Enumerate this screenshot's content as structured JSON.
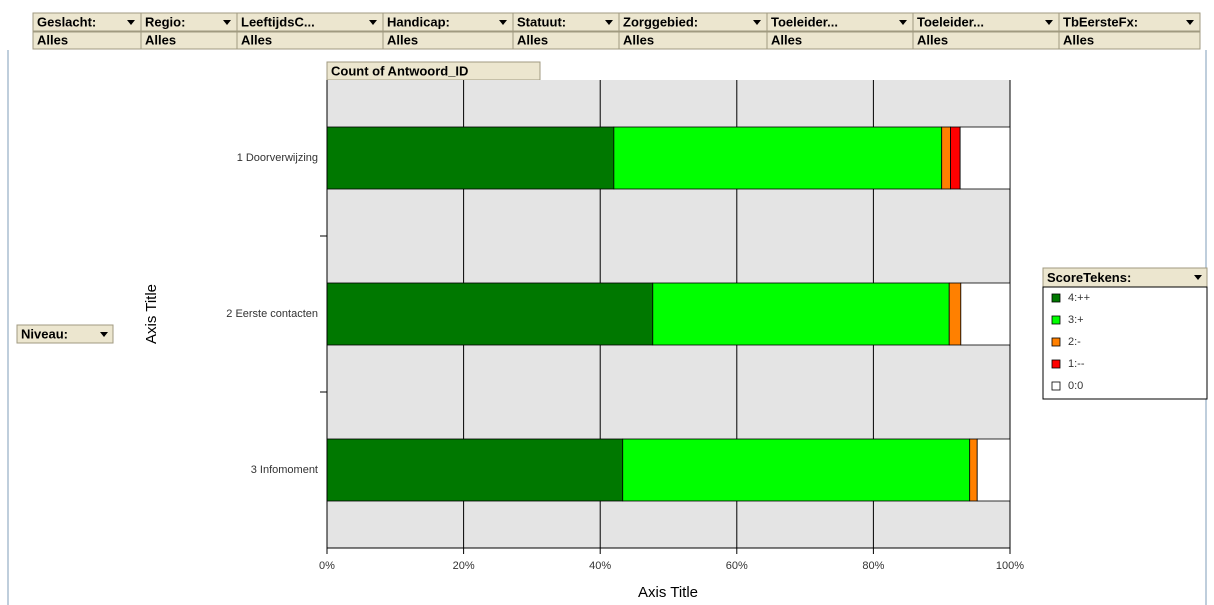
{
  "filters": [
    {
      "name": "Geslacht:",
      "value": "Alles"
    },
    {
      "name": "Regio:",
      "value": "Alles"
    },
    {
      "name": "LeeftijdsC...",
      "value": "Alles"
    },
    {
      "name": "Handicap:",
      "value": "Alles"
    },
    {
      "name": "Statuut:",
      "value": "Alles"
    },
    {
      "name": "Zorggebied:",
      "value": "Alles"
    },
    {
      "name": "Toeleider...",
      "value": "Alles"
    },
    {
      "name": "Toeleider...",
      "value": "Alles"
    },
    {
      "name": "TbEersteFx:",
      "value": "Alles"
    }
  ],
  "row_field": "Niveau:",
  "chart_data": {
    "type": "stacked_barh",
    "data_field": "Count of Antwoord_ID",
    "legend_title": "ScoreTekens:",
    "x_label": "Axis Title",
    "y_label": "Axis Title",
    "categories": [
      "1 Doorverwijzing",
      "2 Eerste contacten",
      "3 Infomoment"
    ],
    "series": [
      {
        "name": "4:++",
        "color": "#007800",
        "values": [
          42,
          47.7,
          43.3
        ]
      },
      {
        "name": "3:+",
        "color": "#00ff00",
        "values": [
          48,
          43.4,
          50.8
        ]
      },
      {
        "name": "2:-",
        "color": "#ff8000",
        "values": [
          1.3,
          1.7,
          1.1
        ]
      },
      {
        "name": "1:--",
        "color": "#ff0000",
        "values": [
          1.4,
          0,
          0
        ]
      },
      {
        "name": "0:0",
        "color": "#ffffff",
        "values": [
          7.3,
          7.2,
          4.8
        ]
      }
    ],
    "xlim": [
      0,
      100
    ],
    "xticks": [
      {
        "value": 0,
        "label": "0%"
      },
      {
        "value": 20,
        "label": "20%"
      },
      {
        "value": 40,
        "label": "40%"
      },
      {
        "value": 60,
        "label": "60%"
      },
      {
        "value": 80,
        "label": "80%"
      },
      {
        "value": 100,
        "label": "100%"
      }
    ],
    "grid": true,
    "legend": "right"
  }
}
